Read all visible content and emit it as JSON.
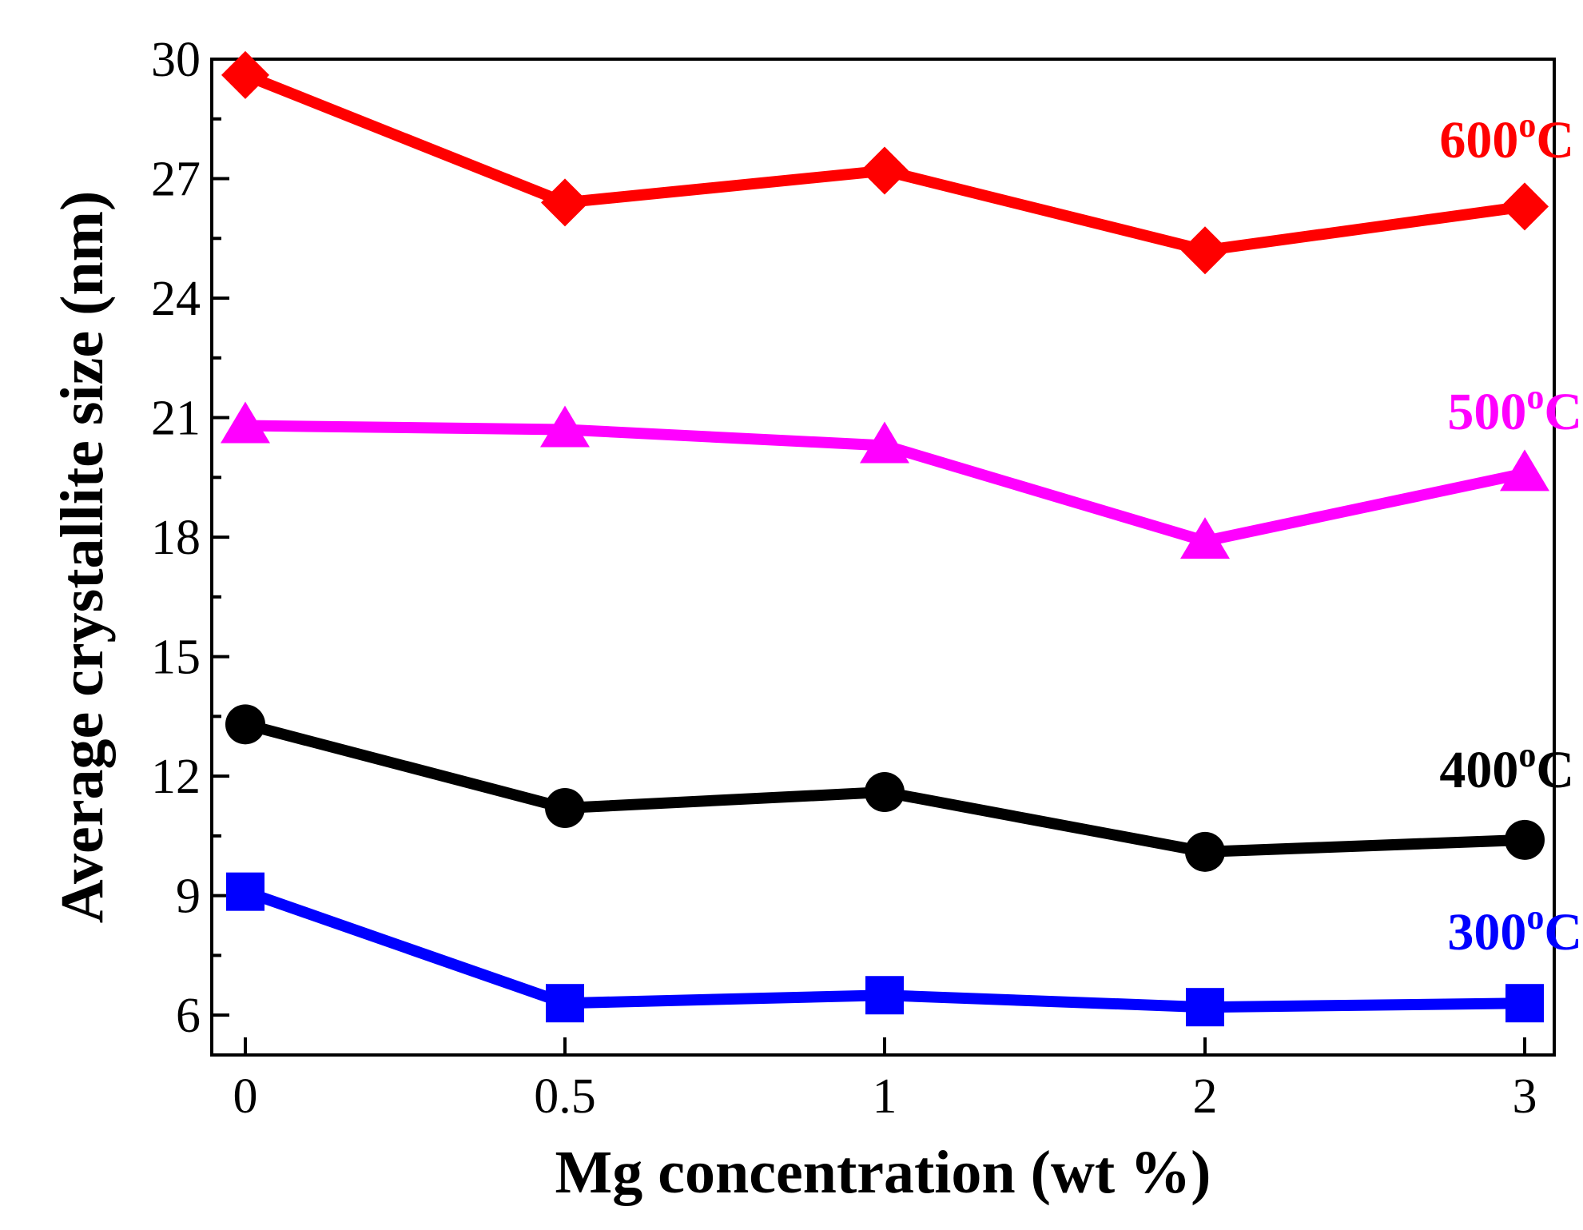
{
  "chart_data": {
    "type": "line",
    "title": "",
    "xlabel": "Mg concentration (wt %)",
    "ylabel": "Average crystallite size (nm)",
    "categories": [
      "0",
      "0.5",
      "1",
      "2",
      "3"
    ],
    "ylim": [
      5,
      30
    ],
    "yticks": [
      6,
      9,
      12,
      15,
      18,
      21,
      24,
      27,
      30
    ],
    "grid": false,
    "series": [
      {
        "name": "600oC",
        "label_main": "600",
        "label_sup": "o",
        "label_unit": "C",
        "color": "#ff0000",
        "marker": "diamond",
        "values": [
          29.6,
          26.4,
          27.2,
          25.2,
          26.3
        ]
      },
      {
        "name": "500oC",
        "label_main": "500",
        "label_sup": "o",
        "label_unit": "C",
        "color": "#ff00ff",
        "marker": "triangle",
        "values": [
          20.8,
          20.7,
          20.3,
          17.9,
          19.6
        ]
      },
      {
        "name": "400oC",
        "label_main": "400",
        "label_sup": "o",
        "label_unit": "C",
        "color": "#000000",
        "marker": "circle",
        "values": [
          13.3,
          11.2,
          11.6,
          10.1,
          10.4
        ]
      },
      {
        "name": "300oC",
        "label_main": "300",
        "label_sup": "o",
        "label_unit": "C",
        "color": "#0000ff",
        "marker": "square",
        "values": [
          9.1,
          6.3,
          6.5,
          6.2,
          6.3
        ]
      }
    ]
  }
}
